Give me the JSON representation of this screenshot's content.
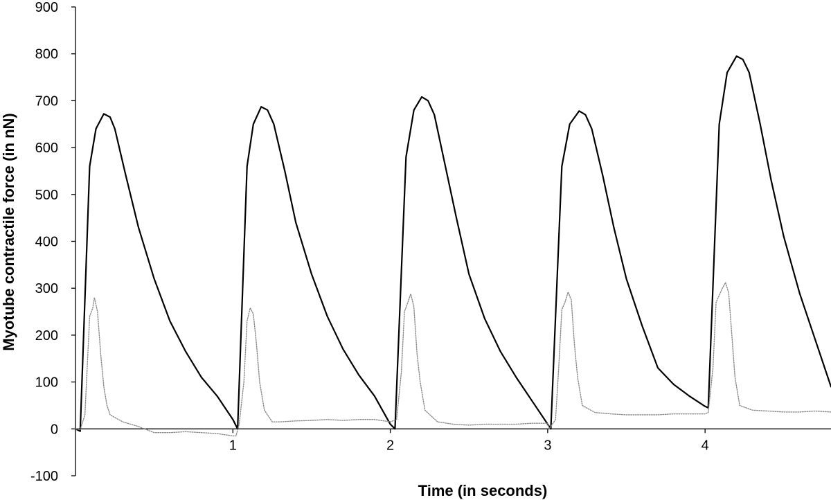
{
  "chart_data": {
    "type": "line",
    "title": "",
    "xlabel": "Time (in seconds)",
    "ylabel": "Myotube contractile force (in nN)",
    "xlim": [
      0,
      4.8
    ],
    "ylim": [
      -100,
      900
    ],
    "grid": false,
    "legend": "none",
    "y_ticks": [
      -100,
      0,
      100,
      200,
      300,
      400,
      500,
      600,
      700,
      800,
      900
    ],
    "x_ticks": [
      1,
      2,
      3,
      4
    ],
    "series": [
      {
        "style": "solid",
        "color": "#000000",
        "points": [
          [
            0.0,
            0
          ],
          [
            0.03,
            -5
          ],
          [
            0.09,
            560
          ],
          [
            0.13,
            640
          ],
          [
            0.18,
            672
          ],
          [
            0.22,
            665
          ],
          [
            0.25,
            640
          ],
          [
            0.32,
            540
          ],
          [
            0.4,
            430
          ],
          [
            0.5,
            320
          ],
          [
            0.6,
            230
          ],
          [
            0.7,
            165
          ],
          [
            0.8,
            110
          ],
          [
            0.9,
            70
          ],
          [
            1.0,
            20
          ],
          [
            1.03,
            0
          ],
          [
            1.09,
            560
          ],
          [
            1.13,
            650
          ],
          [
            1.18,
            687
          ],
          [
            1.22,
            680
          ],
          [
            1.26,
            650
          ],
          [
            1.33,
            550
          ],
          [
            1.4,
            440
          ],
          [
            1.5,
            330
          ],
          [
            1.6,
            240
          ],
          [
            1.7,
            170
          ],
          [
            1.8,
            115
          ],
          [
            1.9,
            70
          ],
          [
            2.0,
            10
          ],
          [
            2.03,
            0
          ],
          [
            2.1,
            580
          ],
          [
            2.15,
            680
          ],
          [
            2.2,
            708
          ],
          [
            2.24,
            700
          ],
          [
            2.28,
            670
          ],
          [
            2.35,
            560
          ],
          [
            2.42,
            450
          ],
          [
            2.5,
            330
          ],
          [
            2.6,
            235
          ],
          [
            2.7,
            165
          ],
          [
            2.8,
            110
          ],
          [
            2.9,
            60
          ],
          [
            3.0,
            10
          ],
          [
            3.02,
            0
          ],
          [
            3.09,
            560
          ],
          [
            3.14,
            650
          ],
          [
            3.2,
            678
          ],
          [
            3.24,
            670
          ],
          [
            3.28,
            640
          ],
          [
            3.35,
            540
          ],
          [
            3.42,
            430
          ],
          [
            3.5,
            320
          ],
          [
            3.6,
            220
          ],
          [
            3.7,
            130
          ],
          [
            3.8,
            95
          ],
          [
            3.9,
            70
          ],
          [
            4.0,
            48
          ],
          [
            4.02,
            45
          ],
          [
            4.09,
            650
          ],
          [
            4.14,
            760
          ],
          [
            4.2,
            795
          ],
          [
            4.24,
            788
          ],
          [
            4.28,
            760
          ],
          [
            4.35,
            650
          ],
          [
            4.42,
            530
          ],
          [
            4.5,
            410
          ],
          [
            4.6,
            290
          ],
          [
            4.7,
            190
          ],
          [
            4.8,
            90
          ]
        ]
      },
      {
        "style": "dotted",
        "color": "#888888",
        "points": [
          [
            0.0,
            0
          ],
          [
            0.03,
            -2
          ],
          [
            0.06,
            30
          ],
          [
            0.09,
            240
          ],
          [
            0.11,
            258
          ],
          [
            0.12,
            280
          ],
          [
            0.14,
            250
          ],
          [
            0.16,
            160
          ],
          [
            0.18,
            90
          ],
          [
            0.2,
            50
          ],
          [
            0.22,
            30
          ],
          [
            0.3,
            15
          ],
          [
            0.4,
            5
          ],
          [
            0.5,
            -8
          ],
          [
            0.6,
            -8
          ],
          [
            0.7,
            -6
          ],
          [
            0.8,
            -8
          ],
          [
            0.9,
            -10
          ],
          [
            1.0,
            -15
          ],
          [
            1.02,
            -15
          ],
          [
            1.04,
            10
          ],
          [
            1.07,
            100
          ],
          [
            1.09,
            230
          ],
          [
            1.11,
            258
          ],
          [
            1.13,
            245
          ],
          [
            1.15,
            180
          ],
          [
            1.17,
            100
          ],
          [
            1.2,
            40
          ],
          [
            1.25,
            15
          ],
          [
            1.3,
            15
          ],
          [
            1.4,
            17
          ],
          [
            1.5,
            18
          ],
          [
            1.6,
            20
          ],
          [
            1.7,
            18
          ],
          [
            1.8,
            20
          ],
          [
            1.9,
            20
          ],
          [
            2.0,
            15
          ],
          [
            2.04,
            20
          ],
          [
            2.07,
            120
          ],
          [
            2.09,
            250
          ],
          [
            2.11,
            268
          ],
          [
            2.13,
            288
          ],
          [
            2.15,
            260
          ],
          [
            2.17,
            160
          ],
          [
            2.19,
            100
          ],
          [
            2.22,
            40
          ],
          [
            2.3,
            15
          ],
          [
            2.4,
            10
          ],
          [
            2.5,
            8
          ],
          [
            2.6,
            10
          ],
          [
            2.7,
            10
          ],
          [
            2.8,
            10
          ],
          [
            2.9,
            12
          ],
          [
            3.0,
            12
          ],
          [
            3.01,
            0
          ],
          [
            3.05,
            20
          ],
          [
            3.07,
            130
          ],
          [
            3.09,
            255
          ],
          [
            3.11,
            270
          ],
          [
            3.13,
            292
          ],
          [
            3.15,
            275
          ],
          [
            3.17,
            180
          ],
          [
            3.19,
            110
          ],
          [
            3.22,
            50
          ],
          [
            3.3,
            35
          ],
          [
            3.4,
            32
          ],
          [
            3.5,
            30
          ],
          [
            3.6,
            30
          ],
          [
            3.7,
            30
          ],
          [
            3.8,
            32
          ],
          [
            3.9,
            32
          ],
          [
            4.0,
            32
          ],
          [
            4.02,
            35
          ],
          [
            4.05,
            130
          ],
          [
            4.07,
            270
          ],
          [
            4.09,
            285
          ],
          [
            4.11,
            300
          ],
          [
            4.13,
            312
          ],
          [
            4.15,
            290
          ],
          [
            4.17,
            200
          ],
          [
            4.19,
            110
          ],
          [
            4.22,
            50
          ],
          [
            4.3,
            40
          ],
          [
            4.4,
            38
          ],
          [
            4.5,
            36
          ],
          [
            4.6,
            36
          ],
          [
            4.7,
            38
          ],
          [
            4.8,
            36
          ]
        ]
      }
    ]
  }
}
